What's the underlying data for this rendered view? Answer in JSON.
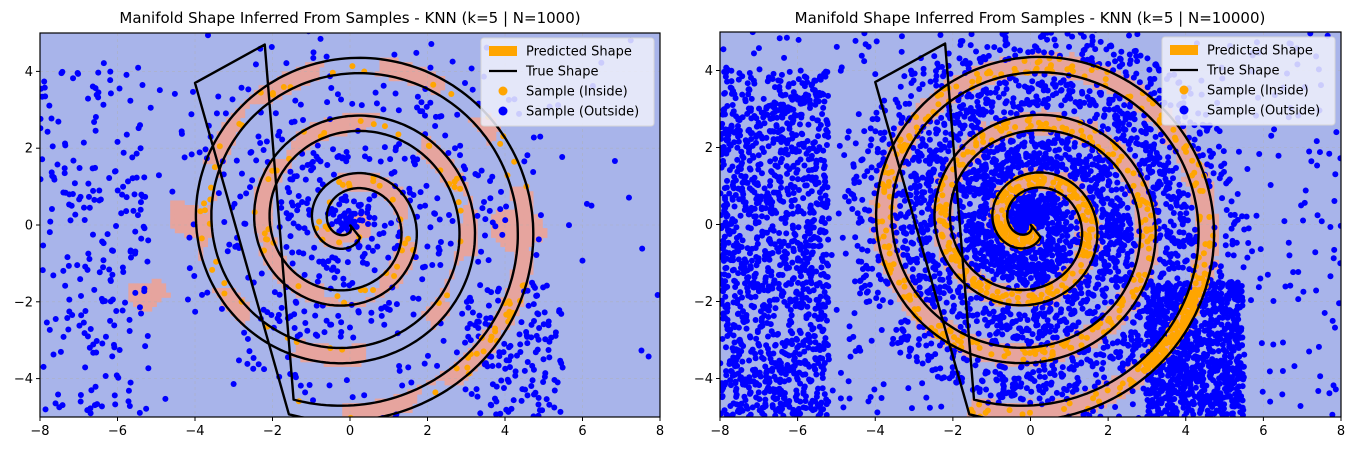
{
  "colors": {
    "background": "#a8b4ea",
    "predicted_region": "#e6a49e",
    "predicted_edge": "#d47a72",
    "inside": "#ffa500",
    "outside": "#0000ff",
    "true_shape": "#000000",
    "legend_bg": "#eef0fb"
  },
  "legend": {
    "items": [
      {
        "label": "Predicted Shape",
        "kind": "patch",
        "color": "#ffa500"
      },
      {
        "label": "True Shape",
        "kind": "line",
        "color": "#000000"
      },
      {
        "label": "Sample (Inside)",
        "kind": "marker",
        "color": "#ffa500"
      },
      {
        "label": "Sample (Outside)",
        "kind": "marker",
        "color": "#0000ff"
      }
    ]
  },
  "chart_data": [
    {
      "type": "scatter",
      "title": "Manifold Shape Inferred From Samples - KNN (k=5 | N=1000)",
      "xlabel": "",
      "ylabel": "",
      "xlim": [
        -8,
        8
      ],
      "ylim": [
        -5,
        5
      ],
      "xticks": [
        "−8",
        "−6",
        "−4",
        "−2",
        "0",
        "2",
        "4",
        "6",
        "8"
      ],
      "xtick_values": [
        -8,
        -6,
        -4,
        -2,
        0,
        2,
        4,
        6,
        8
      ],
      "yticks": [
        "−4",
        "−2",
        "0",
        "2",
        "4"
      ],
      "ytick_values": [
        -4,
        -2,
        0,
        2,
        4
      ],
      "grid": true,
      "legend_position": "top-right",
      "n_samples": 1000,
      "k": 5,
      "true_shape": {
        "kind": "archimedean-spiral-band",
        "growth_per_radian": 0.24,
        "half_width": 0.2,
        "turns": 3.3
      },
      "series": [
        {
          "name": "Sample (Inside)",
          "approx_count": 150
        },
        {
          "name": "Sample (Outside)",
          "approx_count": 850
        }
      ],
      "predicted_region": "patchy fragments along the spiral band plus blobs near (-4.3,0), (4.2,-0.2), (-5.2,-2)"
    },
    {
      "type": "scatter",
      "title": "Manifold Shape Inferred From Samples - KNN (k=5 | N=10000)",
      "xlabel": "",
      "ylabel": "",
      "xlim": [
        -8,
        8
      ],
      "ylim": [
        -5,
        5
      ],
      "xticks": [
        "−8",
        "−6",
        "−4",
        "−2",
        "0",
        "2",
        "4",
        "6",
        "8"
      ],
      "xtick_values": [
        -8,
        -6,
        -4,
        -2,
        0,
        2,
        4,
        6,
        8
      ],
      "yticks": [
        "−4",
        "−2",
        "0",
        "2",
        "4"
      ],
      "ytick_values": [
        -4,
        -2,
        0,
        2,
        4
      ],
      "grid": true,
      "legend_position": "top-right",
      "n_samples": 10000,
      "k": 5,
      "true_shape": {
        "kind": "archimedean-spiral-band",
        "growth_per_radian": 0.24,
        "half_width": 0.2,
        "turns": 3.3
      },
      "series": [
        {
          "name": "Sample (Inside)",
          "approx_count": 1500
        },
        {
          "name": "Sample (Outside)",
          "approx_count": 8500
        }
      ],
      "predicted_region": "continuous band closely following the true spiral"
    }
  ]
}
